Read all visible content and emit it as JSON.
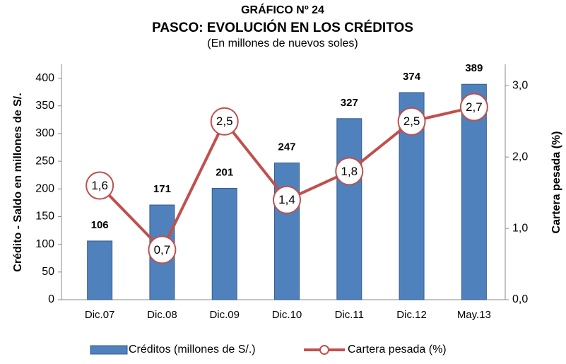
{
  "chart_data": {
    "type": "bar",
    "title": "GRÁFICO Nº 24",
    "subtitle": "PASCO: EVOLUCIÓN EN LOS CRÉDITOS",
    "note": "(En millones de nuevos soles)",
    "y_label": "Crédito - Saldo en millones de S/.",
    "y2_label": "Cartera pesada  (%)",
    "categories": [
      "Dic.07",
      "Dic.08",
      "Dic.09",
      "Dic.10",
      "Dic.11",
      "Dic.12",
      "May.13"
    ],
    "series": [
      {
        "name": "Créditos (millones de S/.)",
        "type": "bar",
        "color": "#4f81bd",
        "values": [
          106,
          171,
          201,
          247,
          327,
          374,
          389
        ]
      },
      {
        "name": "Cartera pesada (%)",
        "type": "line",
        "axis": "y2",
        "color": "#c0504d",
        "values": [
          1.6,
          0.7,
          2.5,
          1.4,
          1.8,
          2.5,
          2.7
        ],
        "value_labels": [
          "1,6",
          "0,7",
          "2,5",
          "1,4",
          "1,8",
          "2,5",
          "2,7"
        ]
      }
    ],
    "ylim": [
      0,
      425
    ],
    "yticks": [
      0,
      50,
      100,
      150,
      200,
      250,
      300,
      350,
      400
    ],
    "y2lim": [
      0,
      3.3
    ],
    "y2ticks": [
      {
        "value": 0,
        "label": "0,0"
      },
      {
        "value": 1,
        "label": "1,0"
      },
      {
        "value": 2,
        "label": "2,0"
      },
      {
        "value": 3,
        "label": "3,0"
      }
    ],
    "legend": "bottom"
  }
}
